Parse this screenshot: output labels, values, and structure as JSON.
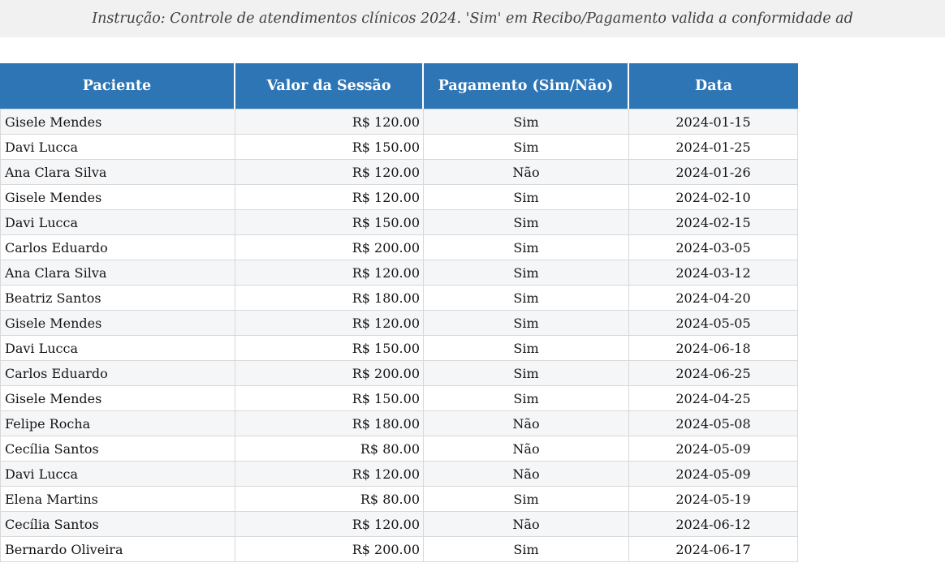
{
  "instruction": {
    "text": "Instrução: Controle de atendimentos clínicos 2024. 'Sim' em Recibo/Pagamento valida a conformidade ad"
  },
  "table": {
    "columns": [
      "Paciente",
      "Valor da Sessão",
      "Pagamento (Sim/Não)",
      "Data"
    ],
    "rows": [
      {
        "paciente": "Gisele Mendes",
        "valor": "R$ 120.00",
        "pagamento": "Sim",
        "data": "2024-01-15"
      },
      {
        "paciente": "Davi Lucca",
        "valor": "R$ 150.00",
        "pagamento": "Sim",
        "data": "2024-01-25"
      },
      {
        "paciente": "Ana Clara Silva",
        "valor": "R$ 120.00",
        "pagamento": "Não",
        "data": "2024-01-26"
      },
      {
        "paciente": "Gisele Mendes",
        "valor": "R$ 120.00",
        "pagamento": "Sim",
        "data": "2024-02-10"
      },
      {
        "paciente": "Davi Lucca",
        "valor": "R$ 150.00",
        "pagamento": "Sim",
        "data": "2024-02-15"
      },
      {
        "paciente": "Carlos Eduardo",
        "valor": "R$ 200.00",
        "pagamento": "Sim",
        "data": "2024-03-05"
      },
      {
        "paciente": "Ana Clara Silva",
        "valor": "R$ 120.00",
        "pagamento": "Sim",
        "data": "2024-03-12"
      },
      {
        "paciente": "Beatriz Santos",
        "valor": "R$ 180.00",
        "pagamento": "Sim",
        "data": "2024-04-20"
      },
      {
        "paciente": "Gisele Mendes",
        "valor": "R$ 120.00",
        "pagamento": "Sim",
        "data": "2024-05-05"
      },
      {
        "paciente": "Davi Lucca",
        "valor": "R$ 150.00",
        "pagamento": "Sim",
        "data": "2024-06-18"
      },
      {
        "paciente": "Carlos Eduardo",
        "valor": "R$ 200.00",
        "pagamento": "Sim",
        "data": "2024-06-25"
      },
      {
        "paciente": "Gisele Mendes",
        "valor": "R$ 150.00",
        "pagamento": "Sim",
        "data": "2024-04-25"
      },
      {
        "paciente": "Felipe Rocha",
        "valor": "R$ 180.00",
        "pagamento": "Não",
        "data": "2024-05-08"
      },
      {
        "paciente": "Cecília Santos",
        "valor": "R$ 80.00",
        "pagamento": "Não",
        "data": "2024-05-09"
      },
      {
        "paciente": "Davi Lucca",
        "valor": "R$ 120.00",
        "pagamento": "Não",
        "data": "2024-05-09"
      },
      {
        "paciente": "Elena Martins",
        "valor": "R$ 80.00",
        "pagamento": "Sim",
        "data": "2024-05-19"
      },
      {
        "paciente": "Cecília Santos",
        "valor": "R$ 120.00",
        "pagamento": "Não",
        "data": "2024-06-12"
      },
      {
        "paciente": "Bernardo Oliveira",
        "valor": "R$ 200.00",
        "pagamento": "Sim",
        "data": "2024-06-17"
      }
    ]
  },
  "colors": {
    "header_bg": "#2E75B5",
    "header_text": "#FFFFFF",
    "row_alt_bg": "#F5F6F8",
    "banner_bg": "#F1F1F1",
    "cell_border": "#D8D8D8"
  }
}
